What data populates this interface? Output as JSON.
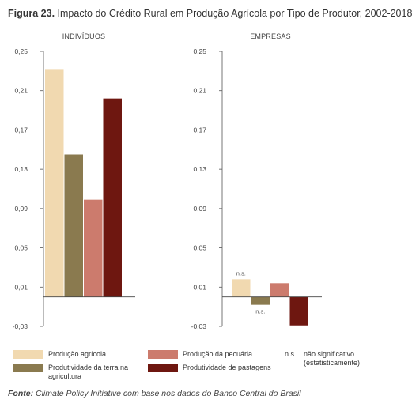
{
  "figure": {
    "label": "Figura 23.",
    "title": "Impacto do Crédito Rural em Produção Agrícola por Tipo de Produtor, 2002-2018"
  },
  "colors": {
    "producao_agricola": "#f1d9b0",
    "produtividade_terra": "#8a7a4f",
    "producao_pecuaria": "#cc7b6d",
    "produtividade_pastagens": "#6e1710"
  },
  "chart_data": [
    {
      "type": "bar",
      "title": "INDIVÍDUOS",
      "ylim": [
        -0.03,
        0.25
      ],
      "yticks": [
        "0,25",
        "0,21",
        "0,17",
        "0,13",
        "0,09",
        "0,05",
        "0,01",
        "-0,03"
      ],
      "ytick_values": [
        0.25,
        0.21,
        0.17,
        0.13,
        0.09,
        0.05,
        0.01,
        -0.03
      ],
      "series": [
        {
          "name": "Produção agrícola",
          "value": 0.232,
          "color": "#f1d9b0",
          "label": ""
        },
        {
          "name": "Produtividade da terra na agricultura",
          "value": 0.145,
          "color": "#8a7a4f",
          "label": ""
        },
        {
          "name": "Produção da pecuária",
          "value": 0.099,
          "color": "#cc7b6d",
          "label": ""
        },
        {
          "name": "Produtividade de pastagens",
          "value": 0.202,
          "color": "#6e1710",
          "label": ""
        }
      ]
    },
    {
      "type": "bar",
      "title": "EMPRESAS",
      "ylim": [
        -0.03,
        0.25
      ],
      "yticks": [
        "0,25",
        "0,21",
        "0,17",
        "0,13",
        "0,09",
        "0,05",
        "0,01",
        "-0,03"
      ],
      "ytick_values": [
        0.25,
        0.21,
        0.17,
        0.13,
        0.09,
        0.05,
        0.01,
        -0.03
      ],
      "series": [
        {
          "name": "Produção agrícola",
          "value": 0.018,
          "color": "#f1d9b0",
          "label": "n.s."
        },
        {
          "name": "Produtividade da terra na agricultura",
          "value": -0.008,
          "color": "#8a7a4f",
          "label": "n.s."
        },
        {
          "name": "Produção da pecuária",
          "value": 0.014,
          "color": "#cc7b6d",
          "label": ""
        },
        {
          "name": "Produtividade de pastagens",
          "value": -0.029,
          "color": "#6e1710",
          "label": ""
        }
      ]
    }
  ],
  "legend": {
    "items": [
      {
        "label": "Produção agrícola"
      },
      {
        "label": "Produtividade da terra na agricultura"
      },
      {
        "label": "Produção da pecuária"
      },
      {
        "label": "Produtividade de pastagens"
      }
    ],
    "ns_abbr": "n.s.",
    "ns_text": "não significativo (estatisticamente)"
  },
  "source": {
    "label": "Fonte:",
    "text": "Climate Policy Initiative com base nos dados do Banco Central do Brasil"
  }
}
